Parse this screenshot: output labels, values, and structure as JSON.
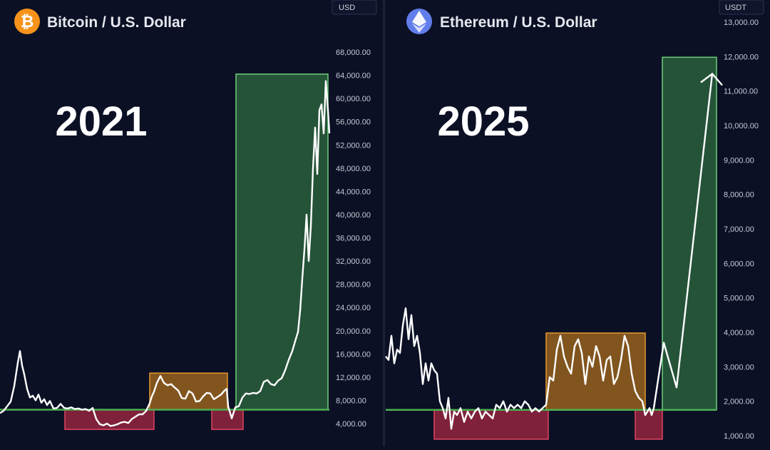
{
  "colors": {
    "background": "#0b1025",
    "price_line": "#ffffff",
    "support_line": "#4caf50",
    "accumulation_zone": "#b5741c",
    "dip_zone": "#b02a45",
    "breakout_zone": "#3d8a48",
    "bitcoin_brand": "#f7931a",
    "ethereum_brand": "#627eea",
    "axis_text": "#c7cad4"
  },
  "chart_data": [
    {
      "type": "line",
      "icon": "bitcoin-icon",
      "title": "Bitcoin / U.S. Dollar",
      "year_label": "2021",
      "currency_label": "USD",
      "ylim": [
        0,
        70000
      ],
      "y_ticks": [
        4000,
        8000,
        12000,
        16000,
        20000,
        24000,
        28000,
        32000,
        36000,
        40000,
        44000,
        48000,
        52000,
        56000,
        60000,
        64000,
        68000
      ],
      "y_tick_labels": [
        "4,000.00",
        "8,000.00",
        "12,000.00",
        "16,000.00",
        "20,000.00",
        "24,000.00",
        "28,000.00",
        "32,000.00",
        "36,000.00",
        "40,000.00",
        "44,000.00",
        "48,000.00",
        "52,000.00",
        "56,000.00",
        "60,000.00",
        "64,000.00",
        "68,000.00"
      ],
      "x": [
        0,
        5,
        10,
        15,
        20,
        25,
        28,
        31,
        34,
        38,
        42,
        46,
        50,
        54,
        58,
        62,
        66,
        70,
        75,
        80,
        85,
        90,
        95,
        100,
        105,
        110,
        115,
        120,
        125,
        130,
        135,
        140,
        145,
        150,
        155,
        160,
        165,
        170,
        175,
        180,
        185,
        190,
        195,
        200,
        205,
        210,
        213,
        216,
        220,
        225,
        230,
        235,
        240,
        245,
        250,
        255,
        260,
        265,
        270,
        275,
        280,
        285,
        290,
        295,
        300,
        305,
        310,
        315,
        318,
        320,
        325,
        330,
        335,
        340,
        345,
        350,
        355,
        360,
        365,
        370,
        375,
        380,
        385,
        390,
        395,
        400,
        405,
        410,
        415,
        418,
        421,
        424,
        427,
        430,
        433,
        436,
        439,
        442,
        445,
        448,
        451,
        454,
        457,
        460,
        462
      ],
      "values": [
        5800,
        6200,
        7000,
        7800,
        10500,
        14500,
        16500,
        14000,
        12500,
        10000,
        8500,
        8800,
        8000,
        9000,
        7600,
        8200,
        7200,
        7900,
        6600,
        6700,
        7400,
        6700,
        6600,
        6800,
        6500,
        6600,
        6400,
        6500,
        6200,
        6700,
        4800,
        3900,
        3700,
        4000,
        3600,
        3700,
        3900,
        4200,
        4300,
        4100,
        4800,
        5200,
        5600,
        5600,
        6200,
        7500,
        8700,
        9500,
        11000,
        12200,
        11000,
        10600,
        10800,
        10200,
        9700,
        8400,
        8300,
        9600,
        9200,
        7800,
        7900,
        8700,
        9300,
        9200,
        8200,
        8600,
        9000,
        9700,
        10000,
        7000,
        4900,
        6800,
        7000,
        8500,
        9200,
        9100,
        9300,
        9200,
        9600,
        11200,
        11500,
        10800,
        10600,
        11400,
        11800,
        13200,
        15000,
        16500,
        18600,
        19800,
        23500,
        29000,
        34000,
        40000,
        32000,
        38000,
        48000,
        55000,
        47000,
        58000,
        59000,
        54000,
        63000,
        58000,
        54000
      ],
      "support_level": 6400,
      "zones": [
        {
          "kind": "dip",
          "x0": 91,
          "x1": 216,
          "y0": 3000,
          "y1": 6400
        },
        {
          "kind": "accumulation",
          "x0": 210,
          "x1": 319,
          "y0": 6400,
          "y1": 12700
        },
        {
          "kind": "dip",
          "x0": 297,
          "x1": 341,
          "y0": 3000,
          "y1": 6400
        },
        {
          "kind": "breakout",
          "x0": 331,
          "x1": 460,
          "y0": 6400,
          "y1": 64200
        }
      ]
    },
    {
      "type": "line",
      "icon": "ethereum-icon",
      "title": "Ethereum / U.S. Dollar",
      "year_label": "2025",
      "currency_label": "USDT",
      "ylim": [
        700,
        13300
      ],
      "y_ticks": [
        1000,
        2000,
        3000,
        4000,
        5000,
        6000,
        7000,
        8000,
        9000,
        10000,
        11000,
        12000,
        13000
      ],
      "y_tick_labels": [
        "1,000.00",
        "2,000.00",
        "3,000.00",
        "4,000.00",
        "5,000.00",
        "6,000.00",
        "7,000.00",
        "8,000.00",
        "9,000.00",
        "10,000.00",
        "11,000.00",
        "12,000.00",
        "13,000.00"
      ],
      "x": [
        0,
        4,
        8,
        12,
        16,
        20,
        24,
        28,
        32,
        36,
        40,
        44,
        48,
        52,
        56,
        60,
        64,
        68,
        72,
        76,
        80,
        84,
        88,
        92,
        96,
        100,
        105,
        110,
        115,
        120,
        125,
        130,
        135,
        140,
        145,
        150,
        155,
        160,
        165,
        170,
        175,
        180,
        185,
        190,
        195,
        200,
        205,
        210,
        215,
        220,
        225,
        230,
        235,
        240,
        245,
        250,
        255,
        260,
        265,
        270,
        275,
        280,
        285,
        290,
        295,
        300,
        305,
        310,
        315,
        320,
        325,
        330,
        335,
        340,
        345,
        350,
        355,
        360,
        364,
        367,
        370,
        373,
        376
      ],
      "values": [
        3300,
        3200,
        3900,
        3100,
        3500,
        3400,
        4200,
        4700,
        3800,
        4500,
        3600,
        3900,
        3400,
        2500,
        3100,
        2600,
        3100,
        2900,
        2800,
        2000,
        1800,
        1500,
        2100,
        1200,
        1700,
        1600,
        1800,
        1400,
        1700,
        1500,
        1700,
        1800,
        1500,
        1700,
        1600,
        1500,
        1900,
        1800,
        2000,
        1700,
        1900,
        1800,
        1900,
        1800,
        2000,
        1900,
        1700,
        1800,
        1700,
        1800,
        1900,
        2700,
        2600,
        3500,
        3900,
        3300,
        3000,
        2800,
        3600,
        3800,
        3400,
        2500,
        3300,
        3000,
        3600,
        3300,
        2600,
        3200,
        3300,
        2500,
        2700,
        3200,
        3900,
        3600,
        2800,
        2300,
        2100,
        2000,
        1600,
        1700,
        1800,
        1600,
        1800
      ],
      "projection_x": [
        376,
        390,
        408,
        458
      ],
      "projection_values": [
        1800,
        3700,
        2400,
        11500
      ],
      "support_level": 1750,
      "zones": [
        {
          "kind": "dip",
          "x0": 68,
          "x1": 228,
          "y0": 900,
          "y1": 1750
        },
        {
          "kind": "accumulation",
          "x0": 225,
          "x1": 364,
          "y0": 1750,
          "y1": 3980
        },
        {
          "kind": "dip",
          "x0": 350,
          "x1": 388,
          "y0": 900,
          "y1": 1750
        },
        {
          "kind": "breakout",
          "x0": 388,
          "x1": 464,
          "y0": 1750,
          "y1": 11980
        }
      ]
    }
  ]
}
